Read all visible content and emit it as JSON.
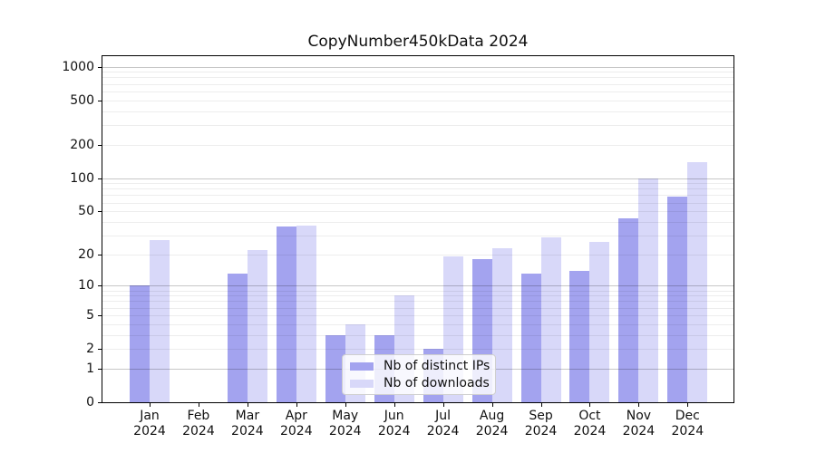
{
  "chart_data": {
    "type": "bar",
    "title": "CopyNumber450kData 2024",
    "categories": [
      "Jan",
      "Feb",
      "Mar",
      "Apr",
      "May",
      "Jun",
      "Jul",
      "Aug",
      "Sep",
      "Oct",
      "Nov",
      "Dec"
    ],
    "x_tick_second_line": "2024",
    "series": [
      {
        "name": "Nb of distinct IPs",
        "color": "#a3a3ef",
        "values": [
          10,
          0,
          13,
          36,
          3,
          3,
          2,
          18,
          13,
          14,
          43,
          68
        ]
      },
      {
        "name": "Nb of downloads",
        "color": "#d8d8f9",
        "values": [
          27,
          0,
          22,
          37,
          4,
          8,
          19,
          23,
          29,
          26,
          100,
          139
        ]
      }
    ],
    "yscale": "log10(1+v)",
    "y_ticks": [
      0,
      1,
      2,
      5,
      10,
      20,
      50,
      100,
      200,
      500,
      1000
    ],
    "ylim": [
      0,
      1000
    ],
    "grid": "on",
    "legend_position": "lower center",
    "colors": {
      "major_grid": "#c6c6c6",
      "minor_grid": "#ededed",
      "axis": "#000000",
      "text": "#111111"
    }
  }
}
